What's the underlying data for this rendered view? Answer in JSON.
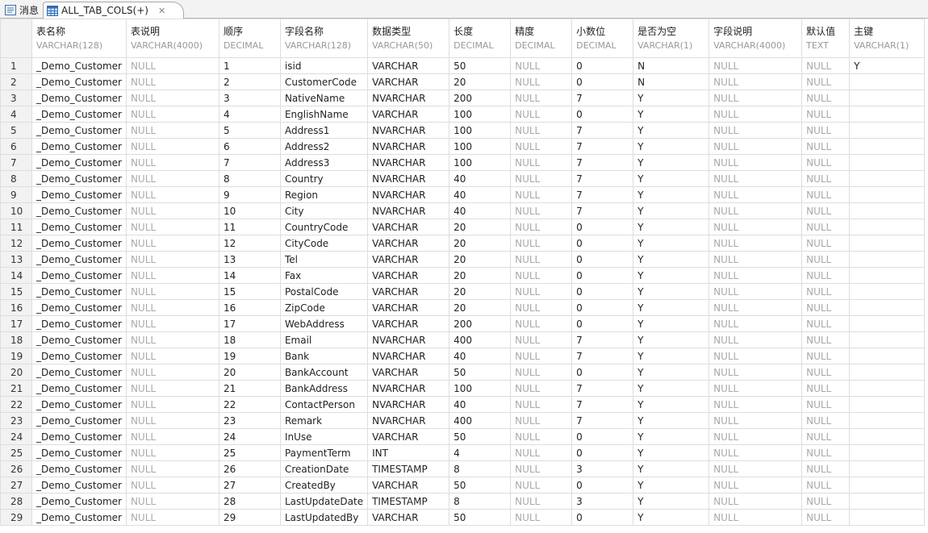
{
  "tabs": [
    {
      "label": "消息",
      "icon": "message-icon"
    },
    {
      "label": "ALL_TAB_COLS(+)",
      "icon": "table-grid-icon",
      "active": true
    }
  ],
  "columns": [
    {
      "name": "表名称",
      "type": "VARCHAR(128)"
    },
    {
      "name": "表说明",
      "type": "VARCHAR(4000)"
    },
    {
      "name": "顺序",
      "type": "DECIMAL"
    },
    {
      "name": "字段名称",
      "type": "VARCHAR(128)"
    },
    {
      "name": "数据类型",
      "type": "VARCHAR(50)"
    },
    {
      "name": "长度",
      "type": "DECIMAL"
    },
    {
      "name": "精度",
      "type": "DECIMAL"
    },
    {
      "name": "小数位",
      "type": "DECIMAL"
    },
    {
      "name": "是否为空",
      "type": "VARCHAR(1)"
    },
    {
      "name": "字段说明",
      "type": "VARCHAR(4000)"
    },
    {
      "name": "默认值",
      "type": "TEXT"
    },
    {
      "name": "主键",
      "type": "VARCHAR(1)"
    }
  ],
  "rows": [
    [
      "_Demo_Customer",
      "NULL",
      "1",
      "isid",
      "VARCHAR",
      "50",
      "NULL",
      "0",
      "N",
      "NULL",
      "NULL",
      "Y"
    ],
    [
      "_Demo_Customer",
      "NULL",
      "2",
      "CustomerCode",
      "VARCHAR",
      "20",
      "NULL",
      "0",
      "N",
      "NULL",
      "NULL",
      ""
    ],
    [
      "_Demo_Customer",
      "NULL",
      "3",
      "NativeName",
      "NVARCHAR",
      "200",
      "NULL",
      "7",
      "Y",
      "NULL",
      "NULL",
      ""
    ],
    [
      "_Demo_Customer",
      "NULL",
      "4",
      "EnglishName",
      "VARCHAR",
      "100",
      "NULL",
      "0",
      "Y",
      "NULL",
      "NULL",
      ""
    ],
    [
      "_Demo_Customer",
      "NULL",
      "5",
      "Address1",
      "NVARCHAR",
      "100",
      "NULL",
      "7",
      "Y",
      "NULL",
      "NULL",
      ""
    ],
    [
      "_Demo_Customer",
      "NULL",
      "6",
      "Address2",
      "NVARCHAR",
      "100",
      "NULL",
      "7",
      "Y",
      "NULL",
      "NULL",
      ""
    ],
    [
      "_Demo_Customer",
      "NULL",
      "7",
      "Address3",
      "NVARCHAR",
      "100",
      "NULL",
      "7",
      "Y",
      "NULL",
      "NULL",
      ""
    ],
    [
      "_Demo_Customer",
      "NULL",
      "8",
      "Country",
      "NVARCHAR",
      "40",
      "NULL",
      "7",
      "Y",
      "NULL",
      "NULL",
      ""
    ],
    [
      "_Demo_Customer",
      "NULL",
      "9",
      "Region",
      "NVARCHAR",
      "40",
      "NULL",
      "7",
      "Y",
      "NULL",
      "NULL",
      ""
    ],
    [
      "_Demo_Customer",
      "NULL",
      "10",
      "City",
      "NVARCHAR",
      "40",
      "NULL",
      "7",
      "Y",
      "NULL",
      "NULL",
      ""
    ],
    [
      "_Demo_Customer",
      "NULL",
      "11",
      "CountryCode",
      "VARCHAR",
      "20",
      "NULL",
      "0",
      "Y",
      "NULL",
      "NULL",
      ""
    ],
    [
      "_Demo_Customer",
      "NULL",
      "12",
      "CityCode",
      "VARCHAR",
      "20",
      "NULL",
      "0",
      "Y",
      "NULL",
      "NULL",
      ""
    ],
    [
      "_Demo_Customer",
      "NULL",
      "13",
      "Tel",
      "VARCHAR",
      "20",
      "NULL",
      "0",
      "Y",
      "NULL",
      "NULL",
      ""
    ],
    [
      "_Demo_Customer",
      "NULL",
      "14",
      "Fax",
      "VARCHAR",
      "20",
      "NULL",
      "0",
      "Y",
      "NULL",
      "NULL",
      ""
    ],
    [
      "_Demo_Customer",
      "NULL",
      "15",
      "PostalCode",
      "VARCHAR",
      "20",
      "NULL",
      "0",
      "Y",
      "NULL",
      "NULL",
      ""
    ],
    [
      "_Demo_Customer",
      "NULL",
      "16",
      "ZipCode",
      "VARCHAR",
      "20",
      "NULL",
      "0",
      "Y",
      "NULL",
      "NULL",
      ""
    ],
    [
      "_Demo_Customer",
      "NULL",
      "17",
      "WebAddress",
      "VARCHAR",
      "200",
      "NULL",
      "0",
      "Y",
      "NULL",
      "NULL",
      ""
    ],
    [
      "_Demo_Customer",
      "NULL",
      "18",
      "Email",
      "NVARCHAR",
      "400",
      "NULL",
      "7",
      "Y",
      "NULL",
      "NULL",
      ""
    ],
    [
      "_Demo_Customer",
      "NULL",
      "19",
      "Bank",
      "NVARCHAR",
      "40",
      "NULL",
      "7",
      "Y",
      "NULL",
      "NULL",
      ""
    ],
    [
      "_Demo_Customer",
      "NULL",
      "20",
      "BankAccount",
      "VARCHAR",
      "50",
      "NULL",
      "0",
      "Y",
      "NULL",
      "NULL",
      ""
    ],
    [
      "_Demo_Customer",
      "NULL",
      "21",
      "BankAddress",
      "NVARCHAR",
      "100",
      "NULL",
      "7",
      "Y",
      "NULL",
      "NULL",
      ""
    ],
    [
      "_Demo_Customer",
      "NULL",
      "22",
      "ContactPerson",
      "NVARCHAR",
      "40",
      "NULL",
      "7",
      "Y",
      "NULL",
      "NULL",
      ""
    ],
    [
      "_Demo_Customer",
      "NULL",
      "23",
      "Remark",
      "NVARCHAR",
      "400",
      "NULL",
      "7",
      "Y",
      "NULL",
      "NULL",
      ""
    ],
    [
      "_Demo_Customer",
      "NULL",
      "24",
      "InUse",
      "VARCHAR",
      "50",
      "NULL",
      "0",
      "Y",
      "NULL",
      "NULL",
      ""
    ],
    [
      "_Demo_Customer",
      "NULL",
      "25",
      "PaymentTerm",
      "INT",
      "4",
      "NULL",
      "0",
      "Y",
      "NULL",
      "NULL",
      ""
    ],
    [
      "_Demo_Customer",
      "NULL",
      "26",
      "CreationDate",
      "TIMESTAMP",
      "8",
      "NULL",
      "3",
      "Y",
      "NULL",
      "NULL",
      ""
    ],
    [
      "_Demo_Customer",
      "NULL",
      "27",
      "CreatedBy",
      "VARCHAR",
      "50",
      "NULL",
      "0",
      "Y",
      "NULL",
      "NULL",
      ""
    ],
    [
      "_Demo_Customer",
      "NULL",
      "28",
      "LastUpdateDate",
      "TIMESTAMP",
      "8",
      "NULL",
      "3",
      "Y",
      "NULL",
      "NULL",
      ""
    ],
    [
      "_Demo_Customer",
      "NULL",
      "29",
      "LastUpdatedBy",
      "VARCHAR",
      "50",
      "NULL",
      "0",
      "Y",
      "NULL",
      "NULL",
      ""
    ]
  ]
}
